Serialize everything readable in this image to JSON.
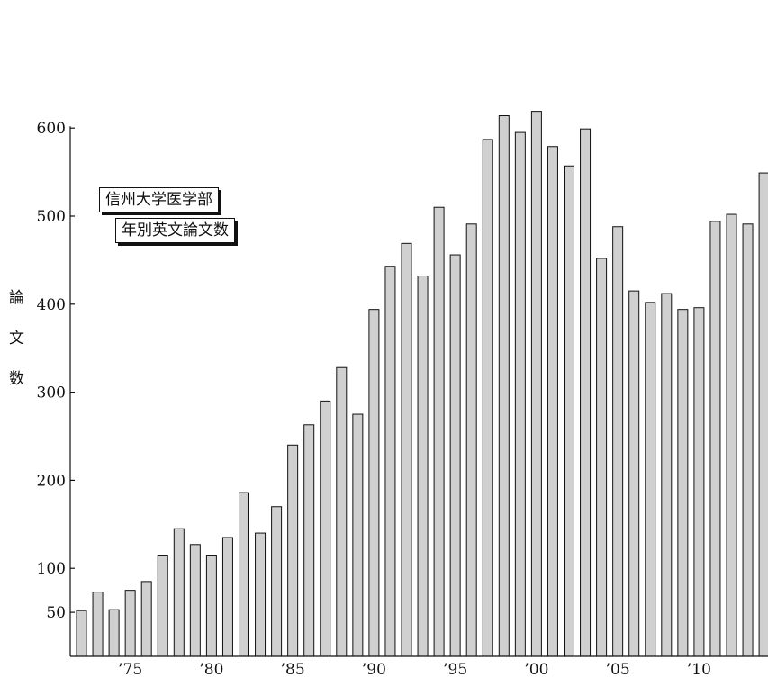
{
  "chart_data": {
    "type": "bar",
    "title_lines": [
      "信州大学医学部",
      "年別英文論文数"
    ],
    "ylabel_chars": [
      "論",
      "文",
      "数"
    ],
    "x": [
      1972,
      1973,
      1974,
      1975,
      1976,
      1977,
      1978,
      1979,
      1980,
      1981,
      1982,
      1983,
      1984,
      1985,
      1986,
      1987,
      1988,
      1989,
      1990,
      1991,
      1992,
      1993,
      1994,
      1995,
      1996,
      1997,
      1998,
      1999,
      2000,
      2001,
      2002,
      2003,
      2004,
      2005,
      2006,
      2007,
      2008,
      2009,
      2010,
      2011,
      2012,
      2013,
      2014
    ],
    "values": [
      52,
      73,
      53,
      75,
      85,
      115,
      145,
      127,
      115,
      135,
      186,
      140,
      170,
      240,
      263,
      290,
      328,
      275,
      394,
      443,
      469,
      432,
      510,
      456,
      491,
      587,
      614,
      595,
      619,
      579,
      557,
      599,
      452,
      488,
      415,
      402,
      412,
      394,
      396,
      494,
      502,
      491,
      549
    ],
    "xticks": [
      {
        "value": 1975,
        "label": "’75"
      },
      {
        "value": 1980,
        "label": "’80"
      },
      {
        "value": 1985,
        "label": "’85"
      },
      {
        "value": 1990,
        "label": "’90"
      },
      {
        "value": 1995,
        "label": "’95"
      },
      {
        "value": 2000,
        "label": "’00"
      },
      {
        "value": 2005,
        "label": "’05"
      },
      {
        "value": 2010,
        "label": "’10"
      }
    ],
    "yticks": [
      {
        "value": 50,
        "label": "50"
      },
      {
        "value": 100,
        "label": "100"
      },
      {
        "value": 200,
        "label": "200"
      },
      {
        "value": 300,
        "label": "300"
      },
      {
        "value": 400,
        "label": "400"
      },
      {
        "value": 500,
        "label": "500"
      },
      {
        "value": 600,
        "label": "600"
      }
    ],
    "ylim": [
      0,
      600
    ],
    "grid": false,
    "legend": "none"
  },
  "colors": {
    "bar_fill": "#d0d0d0",
    "bar_stroke": "#111111",
    "text": "#111111"
  }
}
